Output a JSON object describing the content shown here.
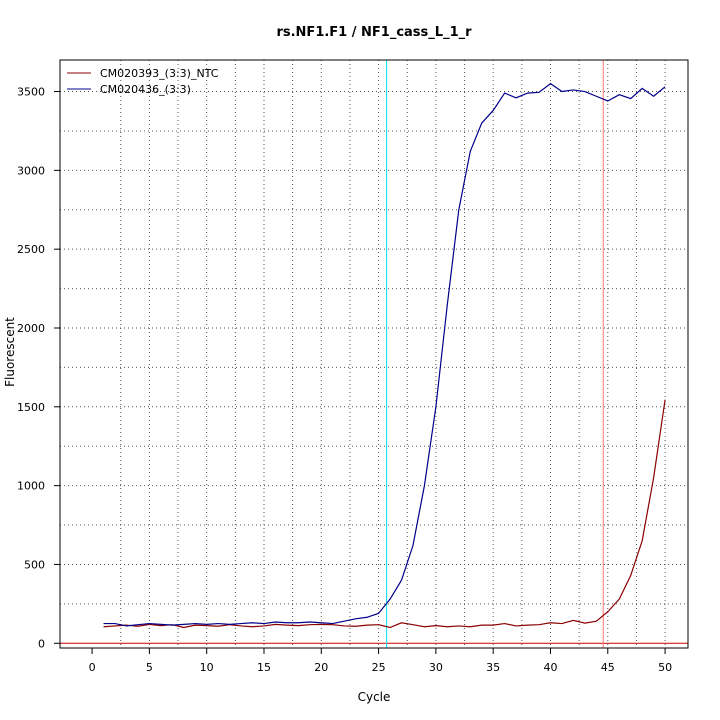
{
  "chart_data": {
    "type": "line",
    "title": "rs.NF1.F1 / NF1_cass_L_1_r",
    "xlabel": "Cycle",
    "ylabel": "Fluorescent",
    "xlim": [
      -2.8,
      52.0
    ],
    "ylim": [
      -30,
      3700
    ],
    "x_ticks": [
      0,
      5,
      10,
      15,
      20,
      25,
      30,
      35,
      40,
      45,
      50
    ],
    "y_ticks": [
      0,
      500,
      1000,
      1500,
      2000,
      2500,
      3000,
      3500
    ],
    "grid": true,
    "legend_position": "top-left",
    "x": [
      1,
      2,
      3,
      4,
      5,
      6,
      7,
      8,
      9,
      10,
      11,
      12,
      13,
      14,
      15,
      16,
      17,
      18,
      19,
      20,
      21,
      22,
      23,
      24,
      25,
      26,
      27,
      28,
      29,
      30,
      31,
      32,
      33,
      34,
      35,
      36,
      37,
      38,
      39,
      40,
      41,
      42,
      43,
      44,
      45,
      46,
      47,
      48,
      49,
      50
    ],
    "series": [
      {
        "name": "CM020393_(3:3)_NTC",
        "color": "#8b0000",
        "values": [
          105,
          110,
          115,
          108,
          120,
          112,
          118,
          100,
          115,
          112,
          108,
          118,
          110,
          105,
          110,
          120,
          115,
          112,
          118,
          120,
          118,
          110,
          108,
          115,
          118,
          100,
          130,
          118,
          105,
          112,
          105,
          110,
          105,
          115,
          115,
          125,
          110,
          115,
          118,
          130,
          125,
          145,
          128,
          140,
          200,
          280,
          430,
          650,
          1050,
          1545
        ]
      },
      {
        "name": "CM020436_(3:3)",
        "color": "#00008b",
        "values": [
          125,
          125,
          110,
          118,
          125,
          120,
          115,
          120,
          125,
          120,
          125,
          120,
          125,
          130,
          125,
          135,
          130,
          130,
          135,
          130,
          125,
          140,
          155,
          165,
          190,
          280,
          400,
          620,
          1000,
          1500,
          2150,
          2750,
          3120,
          3300,
          3380,
          3490,
          3460,
          3490,
          3495,
          3550,
          3500,
          3510,
          3500,
          3470,
          3440,
          3480,
          3455,
          3520,
          3470,
          3530
        ]
      }
    ],
    "reference_lines": {
      "horizontal": {
        "y": 0,
        "color": "#cc0000"
      },
      "vertical": [
        {
          "x": 25.7,
          "color": "#00e5ee"
        },
        {
          "x": 44.6,
          "color": "#ff7070"
        }
      ]
    }
  }
}
